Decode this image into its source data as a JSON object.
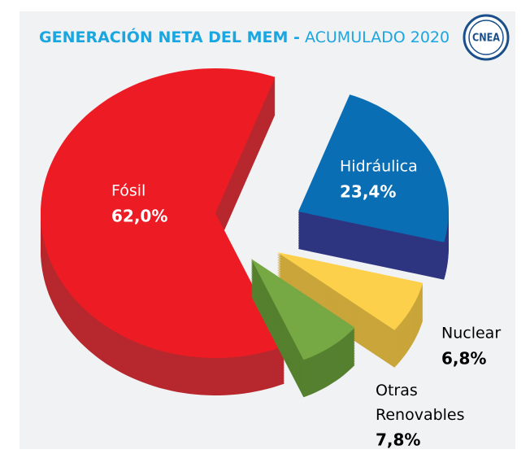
{
  "chart_data": {
    "type": "pie",
    "title": "GENERACIÓN NETA DEL MEM -",
    "subtitle": "ACUMULADO 2020",
    "logo": "CNEA",
    "categories": [
      "Fósil",
      "Hidráulica",
      "Nuclear",
      "Otras Renovables"
    ],
    "values": [
      62.0,
      23.4,
      6.8,
      7.8
    ],
    "value_labels": [
      "62,0%",
      "23,4%",
      "6,8%",
      "7,8%"
    ],
    "colors": [
      "#ed1c24",
      "#0a6eb4",
      "#fcd04b",
      "#76a844"
    ],
    "side_colors": [
      "#b7282e",
      "#2e3580",
      "#c9a53a",
      "#55802f"
    ]
  }
}
